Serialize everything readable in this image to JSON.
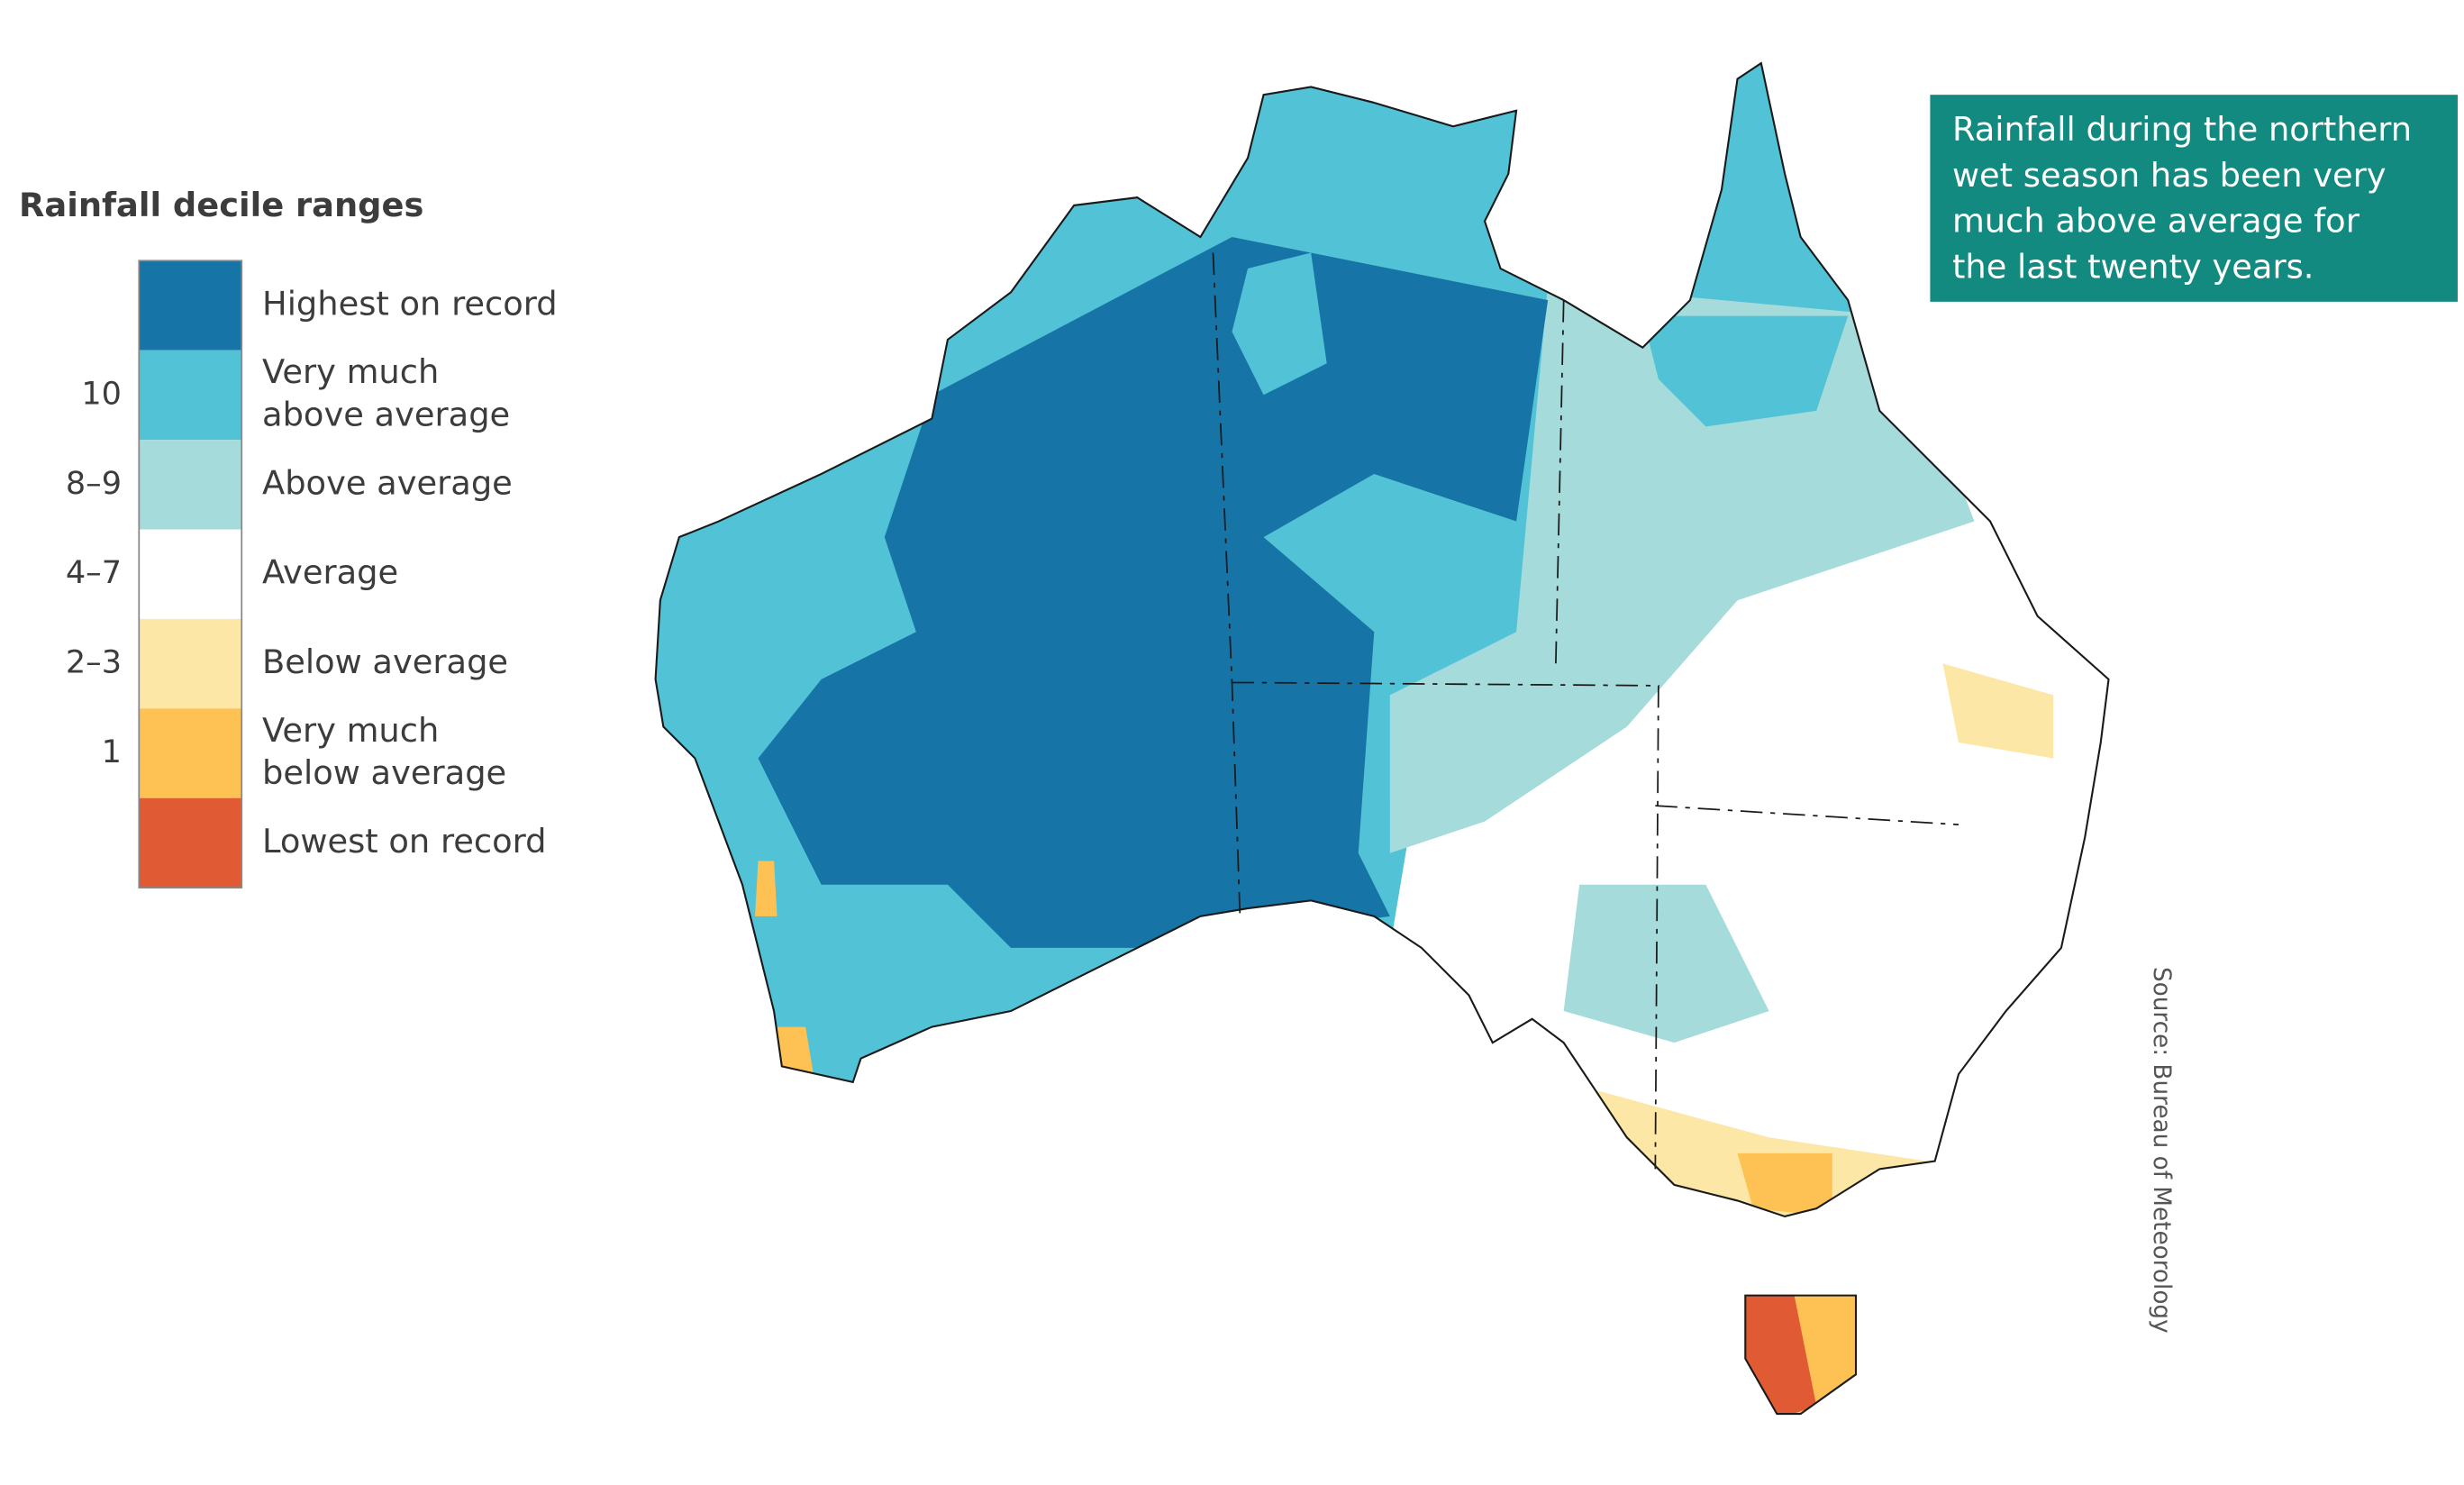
{
  "legend": {
    "title": "Rainfall decile ranges",
    "items": [
      {
        "label": [
          "Highest on record"
        ],
        "color": "#1674a6"
      },
      {
        "label": [
          "Very much",
          "above average"
        ],
        "range": "10",
        "color": "#52c3d6"
      },
      {
        "label": [
          "Above average"
        ],
        "range": "8–9",
        "color": "#a5dbda"
      },
      {
        "label": [
          "Average"
        ],
        "range": "4–7",
        "color": "#ffffff"
      },
      {
        "label": [
          "Below average"
        ],
        "range": "2–3",
        "color": "#fde7a6"
      },
      {
        "label": [
          "Very much",
          "below average"
        ],
        "range": "1",
        "color": "#fdc253"
      },
      {
        "label": [
          "Lowest on record"
        ],
        "color": "#e05a33"
      }
    ]
  },
  "annotation": {
    "lines": [
      "Rainfall during the northern",
      "wet season has been very",
      "much above average for",
      "the last twenty years."
    ],
    "color": "#128a80"
  },
  "source": "Source: Bureau of Meteorology"
}
